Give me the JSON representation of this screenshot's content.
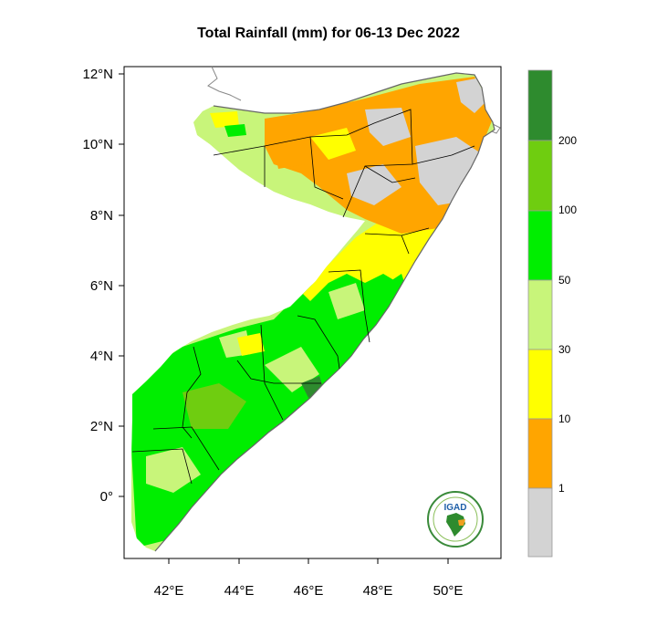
{
  "title": "Total Rainfall (mm) for 06-13 Dec 2022",
  "axes": {
    "lat_labels": [
      "12°N",
      "10°N",
      "8°N",
      "6°N",
      "4°N",
      "2°N",
      "0°"
    ],
    "lon_labels": [
      "42°E",
      "44°E",
      "46°E",
      "48°E",
      "50°E"
    ]
  },
  "colorbar": {
    "colors": [
      "#2e8b2e",
      "#6fcd10",
      "#00ee00",
      "#c8f57a",
      "#ffff00",
      "#ffa500",
      "#d3d3d3"
    ],
    "labels": [
      "200",
      "100",
      "50",
      "30",
      "10",
      "1"
    ]
  },
  "colors": {
    "dry": "#d3d3d3",
    "light": "#ffa500",
    "low": "#ffff00",
    "moderate": "#c8f57a",
    "high": "#00ee00",
    "very_high": "#6fcd10",
    "extreme": "#2e8b2e"
  },
  "logo": {
    "text": "IGAD"
  }
}
